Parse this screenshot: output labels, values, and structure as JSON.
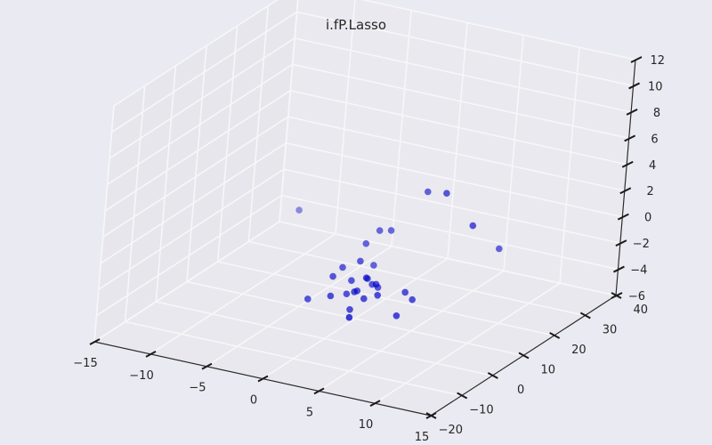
{
  "chart_data": {
    "type": "scatter",
    "title": "i.fP.Lasso",
    "xlabel": "",
    "ylabel": "",
    "zlabel": "",
    "xlim": [
      -15,
      15
    ],
    "ylim": [
      -20,
      40
    ],
    "zlim": [
      -6,
      12
    ],
    "xticks": [
      -15,
      -10,
      -5,
      0,
      5,
      10,
      15
    ],
    "yticks": [
      -20,
      -10,
      0,
      10,
      20,
      30,
      40
    ],
    "zticks": [
      -6,
      -4,
      -2,
      0,
      2,
      4,
      6,
      8,
      10,
      12
    ],
    "grid": true,
    "point_color": "#0000cc",
    "pane_color": "#e8e8ee",
    "grid_color": "#f7f7f9",
    "points": [
      {
        "x": 1.7,
        "y": 8.2,
        "z": -2.8
      },
      {
        "x": 2.2,
        "y": 7.6,
        "z": -2.6
      },
      {
        "x": 2.0,
        "y": 9.1,
        "z": -3.1
      },
      {
        "x": 1.4,
        "y": 7.2,
        "z": -2.2
      },
      {
        "x": 1.1,
        "y": 5.6,
        "z": -3.0
      },
      {
        "x": 3.3,
        "y": 4.1,
        "z": -2.7
      },
      {
        "x": 1.4,
        "y": 3.5,
        "z": -2.7
      },
      {
        "x": 2.1,
        "y": 4.2,
        "z": -3.2
      },
      {
        "x": 0.3,
        "y": 9.0,
        "z": -1.4
      },
      {
        "x": -0.1,
        "y": 12.0,
        "z": -0.6
      },
      {
        "x": -1.0,
        "y": 8.2,
        "z": -2.0
      },
      {
        "x": 0.6,
        "y": 12.5,
        "z": -2.2
      },
      {
        "x": 0.3,
        "y": 6.5,
        "z": -2.5
      },
      {
        "x": 1.0,
        "y": 4.0,
        "z": -4.2
      },
      {
        "x": 0.2,
        "y": 5.6,
        "z": -3.4
      },
      {
        "x": -0.4,
        "y": 2.5,
        "z": -3.2
      },
      {
        "x": 5.3,
        "y": 8.3,
        "z": -3.3
      },
      {
        "x": 4.7,
        "y": 8.0,
        "z": -2.8
      },
      {
        "x": 5.0,
        "y": 4.5,
        "z": -4.0
      },
      {
        "x": -1.1,
        "y": 5.5,
        "z": -2.3
      },
      {
        "x": 2.8,
        "y": -3.0,
        "z": -3.4
      },
      {
        "x": -2.5,
        "y": 3.0,
        "z": -3.9
      },
      {
        "x": 4.3,
        "y": 14.5,
        "z": 3.8
      },
      {
        "x": 6.6,
        "y": 12.0,
        "z": 4.5
      },
      {
        "x": 9.0,
        "y": 12.5,
        "z": 2.4
      },
      {
        "x": 9.8,
        "y": 19.0,
        "z": -0.2
      },
      {
        "x": 0.5,
        "y": 14.0,
        "z": 0.2
      },
      {
        "x": 1.5,
        "y": 14.0,
        "z": 0.4
      },
      {
        "x": -8.5,
        "y": 21.0,
        "z": -1.0
      },
      {
        "x": 0.8,
        "y": 10.0,
        "z": -2.8
      }
    ]
  }
}
